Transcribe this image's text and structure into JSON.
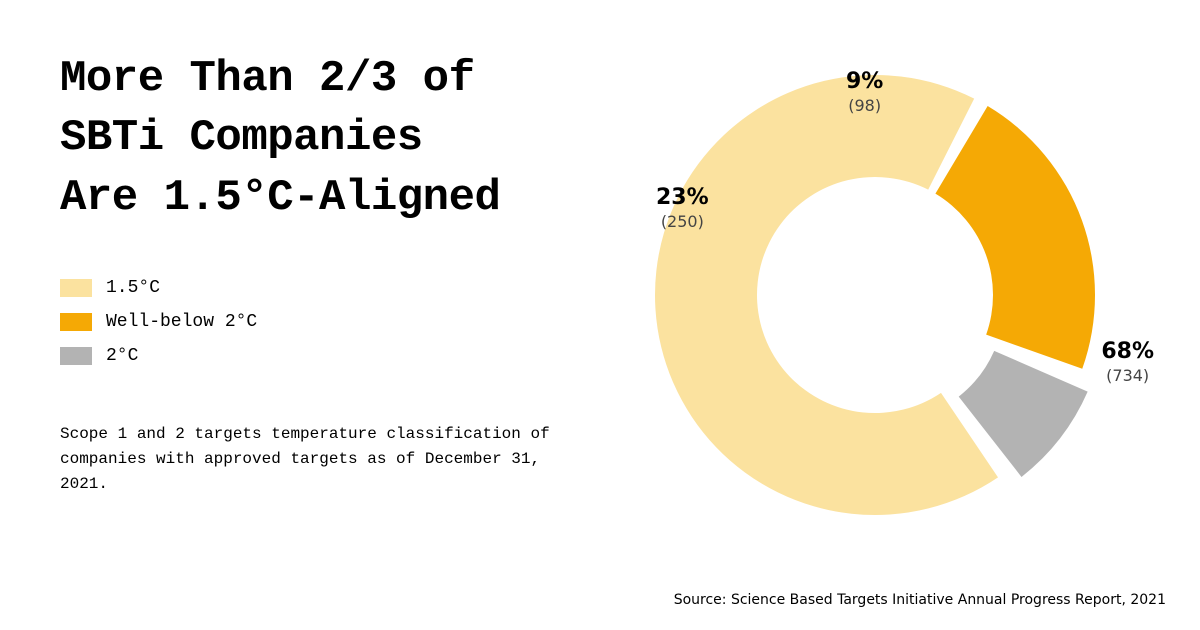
{
  "title_lines": [
    "More Than 2/3 of",
    "SBTi Companies",
    "Are 1.5°C-Aligned"
  ],
  "legend": [
    {
      "label": "1.5°C",
      "color": "#fbe29f"
    },
    {
      "label": "Well-below 2°C",
      "color": "#f5a905"
    },
    {
      "label": "2°C",
      "color": "#b3b3b3"
    }
  ],
  "footnote": "Scope 1 and 2 targets temperature classification of companies with approved targets as of December 31, 2021.",
  "source": "Source: Science Based Targets Initiative Annual Progress Report, 2021",
  "chart": {
    "type": "donut",
    "background_color": "#ffffff",
    "outer_radius": 220,
    "inner_radius": 118,
    "gap_deg": 4,
    "title_fontsize": 44,
    "label_pct_fontsize": 22,
    "label_cnt_fontsize": 16,
    "slices": [
      {
        "key": "1_5c",
        "percent": 68,
        "count": 734,
        "color": "#fbe29f",
        "explode": 0,
        "label_pos": "outside-right"
      },
      {
        "key": "well_below",
        "percent": 23,
        "count": 250,
        "color": "#f5a905",
        "explode": 0,
        "label_pos": "inside"
      },
      {
        "key": "2c",
        "percent": 9,
        "count": 98,
        "color": "#b3b3b3",
        "explode": 14,
        "label_pos": "outside-top"
      }
    ],
    "labels": {
      "1_5c": {
        "pct": "68%",
        "cnt": "(734)"
      },
      "well_below": {
        "pct": "23%",
        "cnt": "(250)"
      },
      "2c": {
        "pct": "9%",
        "cnt": "(98)"
      }
    }
  }
}
